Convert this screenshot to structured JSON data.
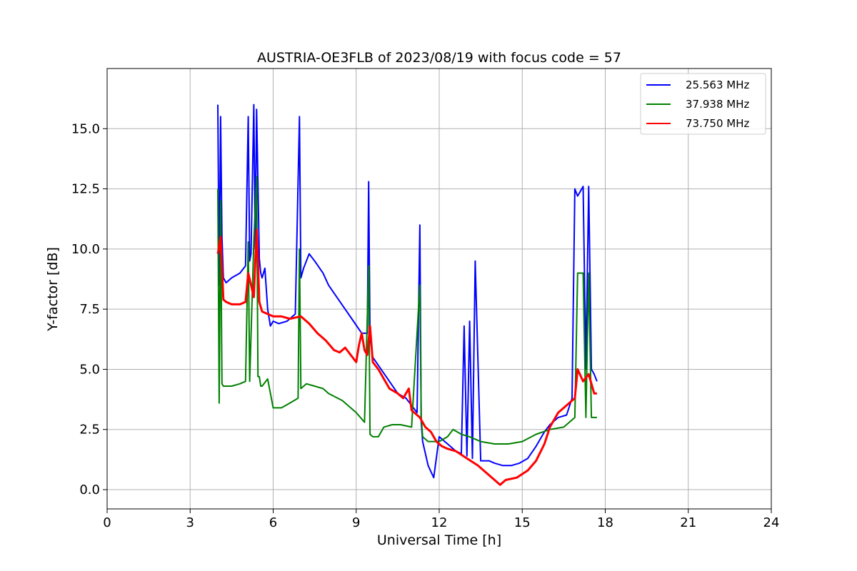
{
  "chart_data": {
    "type": "line",
    "title": "AUSTRIA-OE3FLB of 2023/08/19 with focus code = 57",
    "xlabel": "Universal Time [h]",
    "ylabel": "Y-factor [dB]",
    "xlim": [
      0,
      24
    ],
    "ylim": [
      -0.8,
      17.5
    ],
    "xticks": [
      0,
      3,
      6,
      9,
      12,
      15,
      18,
      21,
      24
    ],
    "xtick_labels": [
      "0",
      "3",
      "6",
      "9",
      "12",
      "15",
      "18",
      "21",
      "24"
    ],
    "yticks": [
      0,
      2.5,
      5,
      7.5,
      10,
      12.5,
      15
    ],
    "ytick_labels": [
      "0.0",
      "2.5",
      "5.0",
      "7.5",
      "10.0",
      "12.5",
      "15.0"
    ],
    "grid": true,
    "legend_position": "top-right",
    "series": [
      {
        "name": "25.563 MHz",
        "color": "#0000ff",
        "x": [
          4.0,
          4.05,
          4.1,
          4.15,
          4.2,
          4.3,
          4.5,
          4.8,
          5.0,
          5.1,
          5.15,
          5.2,
          5.3,
          5.35,
          5.4,
          5.5,
          5.55,
          5.6,
          5.7,
          5.8,
          5.9,
          6.0,
          6.2,
          6.5,
          6.8,
          6.95,
          7.0,
          7.1,
          7.3,
          7.5,
          7.8,
          8.0,
          8.3,
          8.6,
          8.9,
          9.2,
          9.4,
          9.45,
          9.5,
          9.6,
          9.9,
          10.2,
          10.5,
          10.8,
          11.0,
          11.2,
          11.3,
          11.35,
          11.4,
          11.6,
          11.8,
          12.0,
          12.2,
          12.4,
          12.6,
          12.8,
          12.9,
          13.0,
          13.1,
          13.2,
          13.3,
          13.5,
          13.8,
          14.0,
          14.3,
          14.6,
          14.9,
          15.2,
          15.5,
          15.8,
          16.0,
          16.3,
          16.6,
          16.8,
          16.9,
          17.0,
          17.2,
          17.3,
          17.4,
          17.5,
          17.6,
          17.7
        ],
        "y": [
          16.0,
          8.5,
          15.5,
          10.5,
          8.8,
          8.6,
          8.8,
          9.0,
          9.3,
          15.5,
          9.5,
          9.8,
          16.0,
          10.0,
          15.8,
          9.6,
          9.0,
          8.8,
          9.2,
          7.5,
          6.8,
          7.0,
          6.9,
          7.0,
          7.3,
          15.5,
          8.8,
          9.2,
          9.8,
          9.5,
          9.0,
          8.5,
          8.0,
          7.5,
          7.0,
          6.5,
          6.5,
          12.8,
          6.3,
          5.5,
          5.0,
          4.5,
          4.0,
          3.8,
          3.5,
          3.2,
          11.0,
          2.8,
          2.0,
          1.0,
          0.5,
          2.2,
          2.0,
          1.8,
          1.6,
          1.5,
          6.8,
          1.4,
          7.0,
          1.3,
          9.5,
          1.2,
          1.2,
          1.1,
          1.0,
          1.0,
          1.1,
          1.3,
          1.8,
          2.4,
          2.7,
          3.0,
          3.1,
          3.8,
          12.5,
          12.2,
          12.6,
          5.0,
          12.6,
          5.0,
          4.8,
          4.5
        ]
      },
      {
        "name": "37.938 MHz",
        "color": "#008000",
        "x": [
          4.0,
          4.05,
          4.1,
          4.15,
          4.2,
          4.5,
          4.8,
          5.0,
          5.1,
          5.15,
          5.3,
          5.4,
          5.45,
          5.5,
          5.55,
          5.6,
          5.8,
          6.0,
          6.3,
          6.6,
          6.9,
          6.95,
          7.0,
          7.2,
          7.5,
          7.8,
          8.0,
          8.5,
          9.0,
          9.3,
          9.45,
          9.5,
          9.6,
          9.8,
          10.0,
          10.3,
          10.6,
          11.0,
          11.3,
          11.35,
          11.4,
          11.6,
          12.0,
          12.3,
          12.5,
          12.8,
          13.1,
          13.5,
          14.0,
          14.5,
          15.0,
          15.5,
          16.0,
          16.5,
          16.9,
          17.0,
          17.2,
          17.3,
          17.4,
          17.5,
          17.6,
          17.7
        ],
        "y": [
          12.5,
          3.6,
          12.0,
          4.4,
          4.3,
          4.3,
          4.4,
          4.5,
          10.3,
          4.5,
          10.3,
          13.0,
          4.7,
          4.7,
          4.3,
          4.3,
          4.6,
          3.4,
          3.4,
          3.6,
          3.8,
          10.0,
          4.2,
          4.4,
          4.3,
          4.2,
          4.0,
          3.7,
          3.2,
          2.8,
          9.3,
          2.3,
          2.2,
          2.2,
          2.6,
          2.7,
          2.7,
          2.6,
          8.5,
          3.0,
          2.2,
          2.0,
          2.0,
          2.2,
          2.5,
          2.3,
          2.2,
          2.0,
          1.9,
          1.9,
          2.0,
          2.3,
          2.5,
          2.6,
          3.0,
          9.0,
          9.0,
          3.0,
          9.0,
          3.0,
          3.0,
          3.0
        ]
      },
      {
        "name": "73.750 MHz",
        "color": "#ff0000",
        "x": [
          4.0,
          4.1,
          4.2,
          4.3,
          4.5,
          4.8,
          5.0,
          5.1,
          5.2,
          5.3,
          5.4,
          5.45,
          5.5,
          5.6,
          5.8,
          6.0,
          6.3,
          6.6,
          7.0,
          7.3,
          7.6,
          7.9,
          8.2,
          8.4,
          8.6,
          8.8,
          9.0,
          9.1,
          9.2,
          9.3,
          9.4,
          9.5,
          9.6,
          9.8,
          10.0,
          10.2,
          10.5,
          10.7,
          10.9,
          11.0,
          11.3,
          11.5,
          11.7,
          11.9,
          12.1,
          12.3,
          12.6,
          13.0,
          13.4,
          13.8,
          14.2,
          14.4,
          14.8,
          15.2,
          15.5,
          15.8,
          16.0,
          16.3,
          16.6,
          16.9,
          17.0,
          17.2,
          17.4,
          17.6,
          17.7
        ],
        "y": [
          9.8,
          10.5,
          7.9,
          7.8,
          7.7,
          7.7,
          7.8,
          9.0,
          8.5,
          8.0,
          10.8,
          9.5,
          7.8,
          7.4,
          7.3,
          7.2,
          7.2,
          7.1,
          7.2,
          6.9,
          6.5,
          6.2,
          5.8,
          5.7,
          5.9,
          5.6,
          5.3,
          6.0,
          6.5,
          5.8,
          5.6,
          6.8,
          5.3,
          5.0,
          4.6,
          4.2,
          4.0,
          3.8,
          4.2,
          3.3,
          3.0,
          2.6,
          2.4,
          2.0,
          1.8,
          1.7,
          1.6,
          1.3,
          1.0,
          0.6,
          0.2,
          0.4,
          0.5,
          0.8,
          1.2,
          1.9,
          2.6,
          3.2,
          3.5,
          3.8,
          5.0,
          4.5,
          4.8,
          4.0,
          4.0
        ]
      }
    ]
  }
}
